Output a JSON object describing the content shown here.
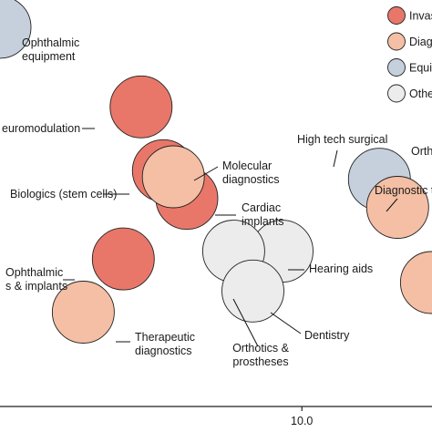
{
  "chart_data": {
    "type": "scatter",
    "variant": "bubble",
    "title": "",
    "xlabel": "",
    "ylabel": "",
    "xlim": [
      4.2,
      12.5
    ],
    "ylim": [
      0,
      10
    ],
    "x_ticks": [
      {
        "value": 10.0,
        "label": "10.0"
      }
    ],
    "grid": false,
    "legend_position": "top-right",
    "legend": [
      {
        "category": "invasive",
        "label": "Invas",
        "color": "#e8776a"
      },
      {
        "category": "diagnostic",
        "label": "Diagn",
        "color": "#f4bfa4"
      },
      {
        "category": "equipment",
        "label": "Equi",
        "color": "#c5d0dc"
      },
      {
        "category": "other",
        "label": "Othe",
        "color": "#ececec"
      }
    ],
    "points": [
      {
        "name": "Ophthalmic equipment",
        "label_lines": [
          "Ophthalmic",
          "equipment"
        ],
        "x": 4.2,
        "y": 9.33,
        "category": "equipment"
      },
      {
        "name": "Neuromodulation",
        "label_lines": [
          "euromodulation"
        ],
        "x": 6.91,
        "y": 7.37,
        "category": "invasive"
      },
      {
        "name": "Cardiac implants",
        "label_lines": [
          "Cardiac",
          "implants"
        ],
        "x": 7.79,
        "y": 5.12,
        "category": "invasive"
      },
      {
        "name": "Biologics (stem cells)",
        "label_lines": [
          "Biologics (stem cells)"
        ],
        "x": 7.34,
        "y": 5.8,
        "category": "invasive"
      },
      {
        "name": "Molecular diagnostics",
        "label_lines": [
          "Molecular",
          "diagnostics"
        ],
        "x": 7.53,
        "y": 5.65,
        "category": "diagnostic"
      },
      {
        "name": "Ophthalmic drugs & implants",
        "label_lines": [
          "Ophthalmic",
          "s & implants"
        ],
        "x": 6.57,
        "y": 3.63,
        "category": "invasive"
      },
      {
        "name": "Therapeutic diagnostics",
        "label_lines": [
          "Therapeutic",
          "diagnostics"
        ],
        "x": 5.8,
        "y": 2.32,
        "category": "diagnostic"
      },
      {
        "name": "Hearing aids",
        "label_lines": [
          "Hearing aids"
        ],
        "x": 9.62,
        "y": 3.82,
        "category": "other"
      },
      {
        "name": "Orthotics & prostheses",
        "label_lines": [
          "Orthotics &",
          "prostheses"
        ],
        "x": 8.69,
        "y": 3.82,
        "category": "other"
      },
      {
        "name": "Dentistry",
        "label_lines": [
          "Dentistry"
        ],
        "x": 9.06,
        "y": 2.84,
        "category": "other"
      },
      {
        "name": "High tech surgical",
        "label_lines": [
          "High tech surgical"
        ],
        "x": 11.49,
        "y": 5.59,
        "category": "equipment"
      },
      {
        "name": "Diagnostic",
        "label_lines": [
          "Diagnostic t"
        ],
        "x": 11.84,
        "y": 4.9,
        "category": "diagnostic"
      },
      {
        "name": "Ortho",
        "label_lines": [
          "Orth"
        ],
        "x": 12.49,
        "y": 3.05,
        "category": "diagnostic"
      }
    ]
  }
}
